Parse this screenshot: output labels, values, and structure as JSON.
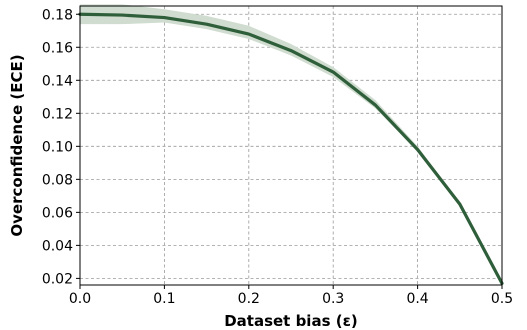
{
  "chart_data": {
    "type": "line",
    "title": "",
    "xlabel": "Dataset bias (ε)",
    "ylabel": "Overconfidence (ECE)",
    "xlim": [
      0.0,
      0.5
    ],
    "ylim": [
      0.016,
      0.185
    ],
    "x_ticks": [
      0.0,
      0.1,
      0.2,
      0.3,
      0.4,
      0.5
    ],
    "x_tick_labels": [
      "0.0",
      "0.1",
      "0.2",
      "0.3",
      "0.4",
      "0.5"
    ],
    "y_ticks": [
      0.02,
      0.04,
      0.06,
      0.08,
      0.1,
      0.12,
      0.14,
      0.16,
      0.18
    ],
    "y_tick_labels": [
      "0.02",
      "0.04",
      "0.06",
      "0.08",
      "0.10",
      "0.12",
      "0.14",
      "0.16",
      "0.18"
    ],
    "grid": true,
    "series": [
      {
        "x": [
          0.0,
          0.05,
          0.1,
          0.15,
          0.2,
          0.25,
          0.3,
          0.35,
          0.4,
          0.45,
          0.5
        ],
        "values": [
          0.18,
          0.1795,
          0.178,
          0.174,
          0.168,
          0.158,
          0.145,
          0.125,
          0.098,
          0.065,
          0.017
        ],
        "lower": [
          0.174,
          0.174,
          0.175,
          0.171,
          0.165,
          0.155,
          0.142,
          0.123,
          0.097,
          0.064,
          0.016
        ],
        "upper": [
          0.186,
          0.186,
          0.183,
          0.179,
          0.173,
          0.162,
          0.148,
          0.128,
          0.1,
          0.066,
          0.018
        ],
        "color": "#2f5f3a",
        "band_color": "#cfdccf"
      }
    ]
  }
}
